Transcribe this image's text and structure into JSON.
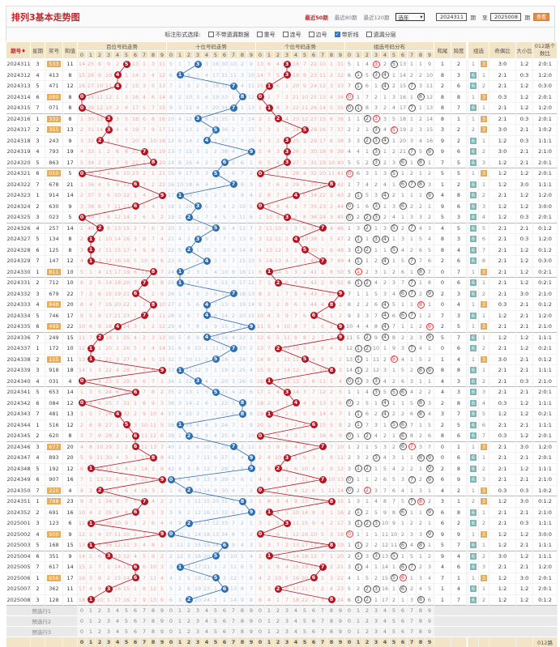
{
  "header": {
    "title": "排列3基本走势图",
    "links": [
      "最近50期",
      "最近80期",
      "最近120期"
    ],
    "year_select": "选年",
    "from": "2024311",
    "period_label": "期",
    "to_label": "至",
    "to": "2025008",
    "view_button": "查看"
  },
  "options": {
    "label": "标注形式选择:",
    "items": [
      {
        "label": "不带遗漏数据",
        "checked": false
      },
      {
        "label": "重号",
        "checked": false
      },
      {
        "label": "连号",
        "checked": false
      },
      {
        "label": "边号",
        "checked": false
      },
      {
        "label": "带折线",
        "checked": true
      },
      {
        "label": "遗漏分层",
        "checked": false
      }
    ]
  },
  "columns": {
    "period": "期号",
    "weekday": "星期",
    "number": "奖号",
    "sum": "和值",
    "hundreds": "百位号码走势",
    "tens": "十位号码走势",
    "units": "个位号码走势",
    "group_dist": "组选号码分布",
    "sum_tail": "和尾",
    "span": "跨度",
    "group": "组选",
    "odd_even": "奇偶比",
    "big_small": "大小比",
    "mod012": "012路个数比",
    "digits": [
      "0",
      "1",
      "2",
      "3",
      "4",
      "5",
      "6",
      "7",
      "8",
      "9"
    ]
  },
  "colors": {
    "red_ball": "#b3141f",
    "blue_ball": "#2c6db3",
    "group6": "#7eb5b5",
    "group3": "#e2ac62"
  },
  "grid": {
    "prev_hundreds": [
      13,
      24,
      7,
      8,
      1,
      0,
      12,
      0,
      2,
      10
    ],
    "prev_tens": [
      4,
      0,
      6,
      0,
      2,
      15,
      29,
      9,
      1,
      8
    ],
    "prev_units": [
      12,
      5,
      3,
      0,
      17,
      6,
      21,
      9,
      0,
      30
    ],
    "prev_group": [
      4,
      0,
      3,
      0,
      1,
      0,
      12,
      0,
      0,
      8
    ],
    "prev_g6": 0,
    "prev_g3": 5
  },
  "rows": [
    [
      "2024311",
      "3",
      "533",
      "11",
      "1",
      "2",
      "3:0",
      "1:2",
      "2:0:1"
    ],
    [
      "2024312",
      "4",
      "413",
      "8",
      "8",
      "3",
      "2:1",
      "0:3",
      "1:2:0"
    ],
    [
      "2024313",
      "5",
      "471",
      "12",
      "2",
      "6",
      "2:1",
      "1:2",
      "0:3:0"
    ],
    [
      "2024314",
      "6",
      "080",
      "8",
      "8",
      "8",
      "0:3",
      "1:2",
      "2:0:1"
    ],
    [
      "2024315",
      "7",
      "071",
      "8",
      "8",
      "7",
      "2:1",
      "1:2",
      "1:2:0"
    ],
    [
      "2024316",
      "1",
      "332",
      "8",
      "8",
      "1",
      "2:1",
      "0:3",
      "2:0:1"
    ],
    [
      "2024317",
      "2",
      "355",
      "13",
      "3",
      "2",
      "3:0",
      "2:1",
      "1:0:2"
    ],
    [
      "2024318",
      "3",
      "243",
      "9",
      "9",
      "2",
      "1:2",
      "0:3",
      "1:1:1"
    ],
    [
      "2024319",
      "4",
      "793",
      "19",
      "9",
      "6",
      "3:0",
      "2:1",
      "2:1:0"
    ],
    [
      "2024320",
      "5",
      "863",
      "17",
      "7",
      "5",
      "1:2",
      "2:1",
      "2:0:1"
    ],
    [
      "2024321",
      "6",
      "050",
      "5",
      "5",
      "5",
      "1:2",
      "1:2",
      "2:0:1"
    ],
    [
      "2024322",
      "7",
      "678",
      "21",
      "1",
      "2",
      "1:2",
      "3:0",
      "1:1:1"
    ],
    [
      "2024323",
      "1",
      "914",
      "14",
      "4",
      "8",
      "2:1",
      "1:2",
      "1:2:0"
    ],
    [
      "2024324",
      "2",
      "630",
      "9",
      "9",
      "6",
      "1:2",
      "1:2",
      "3:0:0"
    ],
    [
      "2024325",
      "3",
      "023",
      "5",
      "5",
      "3",
      "1:2",
      "0:3",
      "2:0:1"
    ],
    [
      "2024326",
      "4",
      "257",
      "14",
      "4",
      "5",
      "2:1",
      "2:1",
      "0:1:2"
    ],
    [
      "2024327",
      "5",
      "134",
      "8",
      "8",
      "3",
      "2:1",
      "0:3",
      "1:2:0"
    ],
    [
      "2024328",
      "6",
      "125",
      "8",
      "8",
      "4",
      "2:1",
      "1:2",
      "0:1:2"
    ],
    [
      "2024329",
      "7",
      "147",
      "12",
      "2",
      "6",
      "2:1",
      "1:2",
      "0:3:0"
    ],
    [
      "2024330",
      "1",
      "811",
      "10",
      "0",
      "7",
      "2:1",
      "1:2",
      "0:2:1"
    ],
    [
      "2024331",
      "2",
      "712",
      "10",
      "0",
      "6",
      "2:1",
      "1:2",
      "0:2:1"
    ],
    [
      "2024332",
      "3",
      "679",
      "22",
      "2",
      "3",
      "2:1",
      "3:0",
      "2:1:0"
    ],
    [
      "2024333",
      "4",
      "848",
      "20",
      "0",
      "4",
      "0:3",
      "2:1",
      "0:1:2"
    ],
    [
      "2024334",
      "5",
      "746",
      "17",
      "7",
      "3",
      "1:2",
      "2:1",
      "1:2:0"
    ],
    [
      "2024335",
      "6",
      "499",
      "22",
      "2",
      "5",
      "2:1",
      "2:1",
      "2:1:0"
    ],
    [
      "2024336",
      "7",
      "249",
      "15",
      "5",
      "7",
      "1:2",
      "1:2",
      "1:1:1"
    ],
    [
      "2024337",
      "1",
      "172",
      "10",
      "0",
      "6",
      "2:1",
      "1:2",
      "0:2:1"
    ],
    [
      "2024338",
      "2",
      "155",
      "11",
      "1",
      "4",
      "3:0",
      "2:1",
      "0:1:2"
    ],
    [
      "2024339",
      "3",
      "918",
      "18",
      "8",
      "8",
      "2:1",
      "2:1",
      "1:1:1"
    ],
    [
      "2024340",
      "4",
      "031",
      "4",
      "4",
      "3",
      "2:1",
      "0:3",
      "2:1:0"
    ],
    [
      "2024341",
      "5",
      "653",
      "14",
      "4",
      "3",
      "2:1",
      "2:1",
      "2:0:1"
    ],
    [
      "2024342",
      "6",
      "084",
      "12",
      "2",
      "8",
      "0:3",
      "1:2",
      "1:1:1"
    ],
    [
      "2024343",
      "7",
      "481",
      "13",
      "3",
      "7",
      "1:2",
      "1:2",
      "0:2:1"
    ],
    [
      "2024344",
      "1",
      "516",
      "12",
      "2",
      "5",
      "2:1",
      "2:1",
      "1:1:1"
    ],
    [
      "2024345",
      "2",
      "620",
      "8",
      "8",
      "6",
      "0:3",
      "1:2",
      "2:0:1"
    ],
    [
      "2024346",
      "3",
      "677",
      "20",
      "0",
      "1",
      "2:1",
      "3:0",
      "1:2:0"
    ],
    [
      "2024347",
      "4",
      "893",
      "20",
      "0",
      "6",
      "2:1",
      "2:1",
      "2:0:1"
    ],
    [
      "2024348",
      "5",
      "192",
      "12",
      "2",
      "8",
      "2:1",
      "1:2",
      "1:1:1"
    ],
    [
      "2024349",
      "6",
      "907",
      "16",
      "6",
      "9",
      "2:1",
      "2:1",
      "2:1:0"
    ],
    [
      "2024350",
      "7",
      "220",
      "4",
      "4",
      "2",
      "0:3",
      "0:3",
      "1:0:2"
    ],
    [
      "2024351",
      "1",
      "788",
      "23",
      "3",
      "1",
      "1:2",
      "3:0",
      "0:1:2"
    ],
    [
      "2024352",
      "2",
      "691",
      "16",
      "6",
      "8",
      "2:1",
      "2:1",
      "2:1:0"
    ],
    [
      "2025001",
      "3",
      "123",
      "6",
      "6",
      "2",
      "2:1",
      "0:3",
      "1:1:1"
    ],
    [
      "2025002",
      "4",
      "900",
      "9",
      "9",
      "9",
      "1:2",
      "1:2",
      "3:0:0"
    ],
    [
      "2025003",
      "5",
      "168",
      "15",
      "5",
      "7",
      "1:2",
      "2:1",
      "1:1:1"
    ],
    [
      "2025004",
      "6",
      "351",
      "9",
      "9",
      "4",
      "3:0",
      "1:2",
      "1:1:1"
    ],
    [
      "2025005",
      "7",
      "617",
      "14",
      "4",
      "6",
      "2:1",
      "2:1",
      "1:2:0"
    ],
    [
      "2025006",
      "1",
      "656",
      "17",
      "7",
      "1",
      "1:2",
      "3:0",
      "2:0:1"
    ],
    [
      "2025007",
      "2",
      "362",
      "11",
      "1",
      "4",
      "1:2",
      "1:2",
      "2:0:1"
    ],
    [
      "2025008",
      "3",
      "128",
      "11",
      "1",
      "7",
      "1:2",
      "1:2",
      "0:1:2"
    ]
  ],
  "footer": {
    "rows": [
      "预选行1",
      "预选行2",
      "预选行3"
    ],
    "last_label": "012路"
  }
}
